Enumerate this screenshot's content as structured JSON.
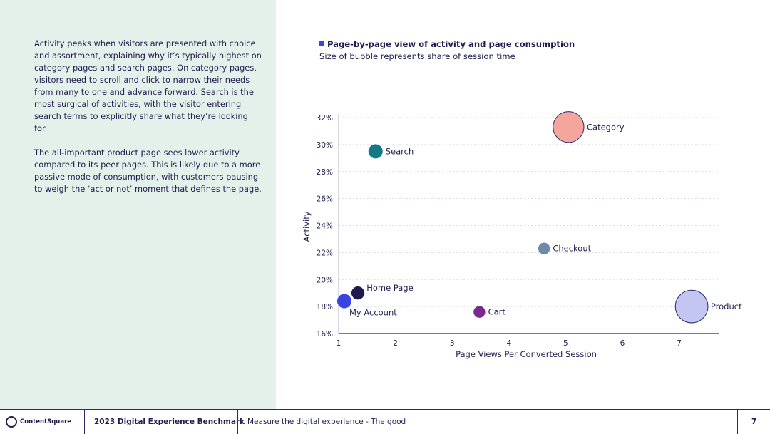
{
  "narrative": {
    "paragraph1": "Activity peaks when visitors are presented with choice and assortment, explaining why it’s typically highest on category pages and search pages. On category pages, visitors need to scroll and click to narrow their needs from many to one and advance forward. Search is the most surgical of activities, with the visitor entering search terms to explicitly share what they’re looking for.",
    "paragraph2": "The all-important product page sees lower activity compared to its peer pages. This is likely due to a more passive mode of consumption, with customers pausing to weigh the ‘act or not’ moment that defines the page."
  },
  "chart_data": {
    "type": "scatter",
    "title": "Page-by-page view of activity and page consumption",
    "subtitle": "Size of bubble represents share of session time",
    "xlabel": "Page Views Per Converted Session",
    "ylabel": "Activity",
    "xlim": [
      1,
      7.7
    ],
    "ylim": [
      16,
      32
    ],
    "xticks": [
      "1",
      "2",
      "3",
      "4",
      "5",
      "6",
      "7"
    ],
    "yticks": [
      "16%",
      "18%",
      "20%",
      "22%",
      "24%",
      "26%",
      "28%",
      "30%",
      "32%"
    ],
    "grid": true,
    "points": [
      {
        "label": "Category",
        "x": 5.05,
        "y": 31.3,
        "size": 9,
        "color": "#f4a59c",
        "label_side": "right"
      },
      {
        "label": "Search",
        "x": 1.65,
        "y": 29.5,
        "size": 3,
        "color": "#127a82",
        "label_side": "right"
      },
      {
        "label": "Checkout",
        "x": 4.62,
        "y": 22.3,
        "size": 2,
        "color": "#7089a8",
        "label_side": "right"
      },
      {
        "label": "Home Page",
        "x": 1.34,
        "y": 19.0,
        "size": 2.5,
        "color": "#1c1a4e",
        "label_side": "upper-right"
      },
      {
        "label": "My Account",
        "x": 1.1,
        "y": 18.4,
        "size": 3,
        "color": "#3a44e0",
        "label_side": "lower-right"
      },
      {
        "label": "Cart",
        "x": 3.48,
        "y": 17.6,
        "size": 2,
        "color": "#7a2a8e",
        "label_side": "right"
      },
      {
        "label": "Product",
        "x": 7.22,
        "y": 18.0,
        "size": 10,
        "color": "#c4c6f2",
        "label_side": "right"
      }
    ]
  },
  "footer": {
    "logo_text": "ContentSquare",
    "report_title": "2023 Digital Experience Benchmark",
    "section_title": "Measure the digital experience - The good",
    "page_number": "7"
  }
}
